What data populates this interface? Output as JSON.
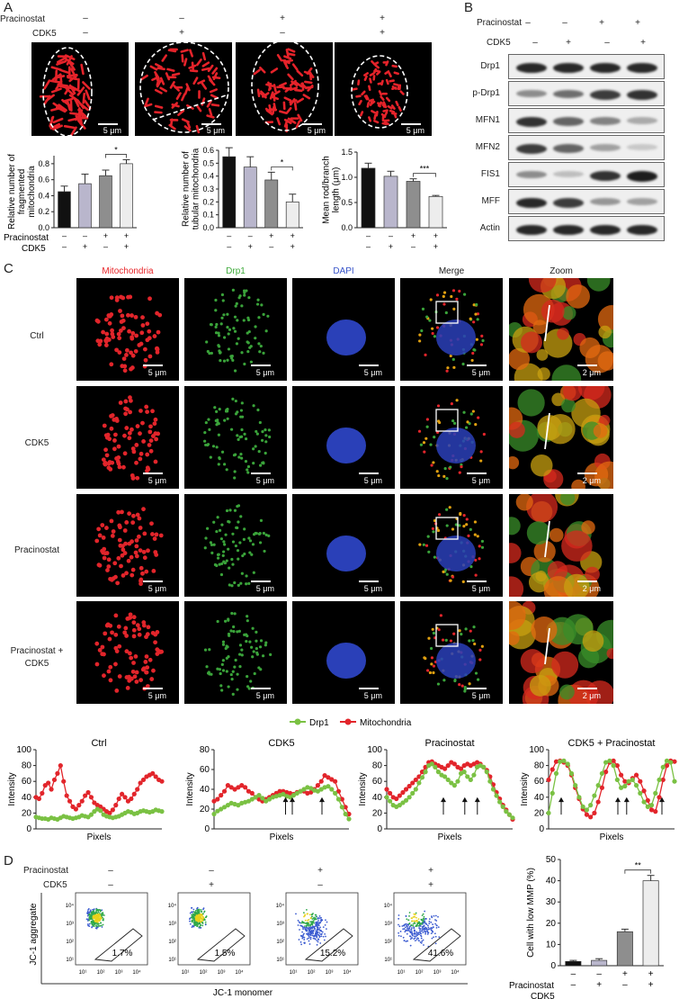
{
  "panels": {
    "A": "A",
    "B": "B",
    "C": "C",
    "D": "D"
  },
  "treatments": {
    "pracinostat_label": "Pracinostat",
    "cdk5_label": "CDK5",
    "pracinostat": [
      "–",
      "–",
      "+",
      "+"
    ],
    "cdk5": [
      "–",
      "+",
      "–",
      "+"
    ]
  },
  "panelA": {
    "scale": "5 μm",
    "chart_data": [
      {
        "type": "bar",
        "ylabel": "Relative number of fragmented mitochondria",
        "ylim": [
          0,
          0.9
        ],
        "yticks": [
          "0.0",
          "0.2",
          "0.4",
          "0.6",
          "0.8"
        ],
        "values": [
          0.45,
          0.55,
          0.65,
          0.8
        ],
        "errors": [
          0.07,
          0.12,
          0.07,
          0.05
        ],
        "colors": [
          "#111111",
          "#b9b6cc",
          "#8e8e8e",
          "#ededed"
        ],
        "sig": {
          "between": [
            2,
            3
          ],
          "label": "*"
        }
      },
      {
        "type": "bar",
        "ylabel": "Relative number of tubular mitochondria",
        "ylim": [
          0,
          0.6
        ],
        "yticks": [
          "0.0",
          "0.1",
          "0.2",
          "0.3",
          "0.4",
          "0.5",
          "0.6"
        ],
        "values": [
          0.55,
          0.47,
          0.37,
          0.2
        ],
        "errors": [
          0.07,
          0.08,
          0.06,
          0.06
        ],
        "colors": [
          "#111111",
          "#b9b6cc",
          "#8e8e8e",
          "#ededed"
        ],
        "sig": {
          "between": [
            2,
            3
          ],
          "label": "*"
        }
      },
      {
        "type": "bar",
        "ylabel": "Mean rod/branch length (μm)",
        "ylim": [
          0,
          1.5
        ],
        "yticks": [
          "0.0",
          "0.5",
          "1.0",
          "1.5"
        ],
        "values": [
          1.18,
          1.02,
          0.92,
          0.62
        ],
        "errors": [
          0.1,
          0.1,
          0.05,
          0.02
        ],
        "colors": [
          "#111111",
          "#b9b6cc",
          "#8e8e8e",
          "#ededed"
        ],
        "sig": {
          "between": [
            2,
            3
          ],
          "label": "***"
        }
      }
    ]
  },
  "panelB": {
    "proteins": [
      "Drp1",
      "p-Drp1",
      "MFN1",
      "MFN2",
      "FIS1",
      "MFF",
      "Actin"
    ],
    "intensity": [
      [
        0.9,
        0.9,
        0.9,
        0.9
      ],
      [
        0.4,
        0.55,
        0.8,
        0.85
      ],
      [
        0.85,
        0.6,
        0.45,
        0.25
      ],
      [
        0.8,
        0.6,
        0.3,
        0.1
      ],
      [
        0.4,
        0.15,
        0.85,
        0.95
      ],
      [
        0.9,
        0.8,
        0.35,
        0.3
      ],
      [
        0.9,
        0.9,
        0.9,
        0.9
      ]
    ]
  },
  "panelC": {
    "columns": [
      "Mitochondria",
      "Drp1",
      "DAPI",
      "Merge",
      "Zoom"
    ],
    "column_colors": [
      "#e8262a",
      "#3daa3a",
      "#3652c8",
      "#222222",
      "#222222"
    ],
    "rows": [
      "Ctrl",
      "CDK5",
      "Pracinostat",
      "Pracinostat +\nCDK5"
    ],
    "scale": "5 μm",
    "zoom_scale": "2 μm",
    "legend": [
      "Drp1",
      "Mitochondria"
    ],
    "legend_colors": [
      "#7ac143",
      "#e2252b"
    ]
  },
  "chart_data_profiles": [
    {
      "type": "line",
      "title": "Ctrl",
      "xlabel": "Pixels",
      "ylabel": "Intensity",
      "ylim": [
        0,
        100
      ],
      "yticks": [
        "0",
        "20",
        "40",
        "60",
        "80",
        "100"
      ],
      "series": [
        {
          "name": "Drp1",
          "values": [
            15,
            14,
            13,
            13,
            12,
            14,
            13,
            12,
            14,
            16,
            15,
            14,
            13,
            14,
            15,
            17,
            16,
            15,
            18,
            22,
            25,
            23,
            18,
            16,
            15,
            14,
            15,
            16,
            18,
            20,
            22,
            21,
            19,
            20,
            22,
            23,
            22,
            21,
            22,
            24,
            23,
            22
          ]
        },
        {
          "name": "Mitochondria",
          "values": [
            40,
            38,
            45,
            55,
            58,
            50,
            62,
            70,
            80,
            60,
            42,
            35,
            28,
            25,
            30,
            35,
            42,
            46,
            40,
            33,
            30,
            28,
            25,
            22,
            20,
            24,
            30,
            38,
            44,
            40,
            35,
            38,
            44,
            50,
            58,
            62,
            66,
            68,
            70,
            66,
            62,
            60
          ]
        }
      ]
    },
    {
      "type": "line",
      "title": "CDK5",
      "xlabel": "Pixels",
      "ylabel": "Intensity",
      "ylim": [
        0,
        80
      ],
      "yticks": [
        "0",
        "20",
        "40",
        "60",
        "80"
      ],
      "arrows": [
        0.53,
        0.58,
        0.8
      ],
      "series": [
        {
          "name": "Drp1",
          "values": [
            15,
            18,
            20,
            22,
            24,
            26,
            25,
            24,
            26,
            27,
            28,
            30,
            32,
            34,
            31,
            28,
            30,
            32,
            33,
            34,
            35,
            33,
            32,
            34,
            36,
            38,
            40,
            42,
            41,
            39,
            38,
            40,
            42,
            43,
            40,
            36,
            30,
            22,
            15,
            10
          ]
        },
        {
          "name": "Mitochondria",
          "values": [
            28,
            30,
            34,
            38,
            44,
            42,
            40,
            42,
            44,
            42,
            38,
            36,
            32,
            30,
            28,
            30,
            32,
            34,
            36,
            38,
            38,
            37,
            36,
            35,
            37,
            38,
            38,
            36,
            37,
            40,
            44,
            48,
            54,
            52,
            50,
            48,
            38,
            30,
            22,
            15
          ]
        }
      ]
    },
    {
      "type": "line",
      "title": "Pracinostat",
      "xlabel": "Pixels",
      "ylabel": "Intensity",
      "ylim": [
        0,
        100
      ],
      "yticks": [
        "0",
        "20",
        "40",
        "60",
        "80",
        "100"
      ],
      "arrows": [
        0.45,
        0.62,
        0.72
      ],
      "series": [
        {
          "name": "Drp1",
          "values": [
            40,
            35,
            30,
            28,
            30,
            33,
            36,
            40,
            45,
            50,
            58,
            65,
            72,
            80,
            82,
            78,
            72,
            68,
            66,
            62,
            58,
            55,
            60,
            70,
            72,
            66,
            62,
            68,
            78,
            80,
            78,
            72,
            60,
            50,
            42,
            34,
            28,
            22,
            18,
            14
          ]
        },
        {
          "name": "Mitochondria",
          "values": [
            50,
            45,
            40,
            38,
            42,
            46,
            50,
            54,
            58,
            62,
            66,
            72,
            78,
            84,
            85,
            82,
            80,
            78,
            76,
            80,
            84,
            82,
            78,
            76,
            80,
            82,
            80,
            82,
            84,
            82,
            78,
            74,
            66,
            56,
            46,
            38,
            30,
            24,
            18,
            12
          ]
        }
      ]
    },
    {
      "type": "line",
      "title": "CDK5 + Pracinostat",
      "xlabel": "Pixels",
      "ylabel": "Intensity",
      "ylim": [
        0,
        100
      ],
      "yticks": [
        "0",
        "20",
        "40",
        "60",
        "80",
        "100"
      ],
      "arrows": [
        0.1,
        0.55,
        0.62,
        0.9
      ],
      "series": [
        {
          "name": "Drp1",
          "values": [
            20,
            45,
            70,
            85,
            86,
            82,
            70,
            55,
            40,
            28,
            24,
            30,
            42,
            55,
            70,
            84,
            86,
            80,
            62,
            52,
            54,
            60,
            62,
            55,
            45,
            34,
            28,
            30,
            45,
            62,
            78,
            86,
            84,
            60
          ]
        },
        {
          "name": "Mitochondria",
          "values": [
            62,
            75,
            85,
            86,
            84,
            80,
            68,
            52,
            38,
            25,
            18,
            15,
            20,
            34,
            52,
            72,
            84,
            86,
            80,
            68,
            60,
            58,
            64,
            68,
            60,
            48,
            36,
            24,
            22,
            40,
            62,
            80,
            86,
            85
          ]
        }
      ]
    }
  ],
  "panelD": {
    "ylabel": "JC-1 aggregate",
    "xlabel": "JC-1 monomer",
    "percents": [
      "1.7%",
      "1.5%",
      "15.2%",
      "41.6%"
    ],
    "ticks": [
      "10¹",
      "10²",
      "10³",
      "10⁴"
    ],
    "chart_data": {
      "type": "bar",
      "ylabel": "Cell with low MMP (%)",
      "ylim": [
        0,
        50
      ],
      "yticks": [
        "0",
        "10",
        "20",
        "30",
        "40",
        "50"
      ],
      "values": [
        2,
        2.5,
        16,
        40
      ],
      "errors": [
        0.5,
        0.8,
        1.2,
        2.5
      ],
      "colors": [
        "#111111",
        "#b9b6cc",
        "#8e8e8e",
        "#ededed"
      ],
      "sig": {
        "between": [
          2,
          3
        ],
        "label": "**"
      }
    }
  }
}
